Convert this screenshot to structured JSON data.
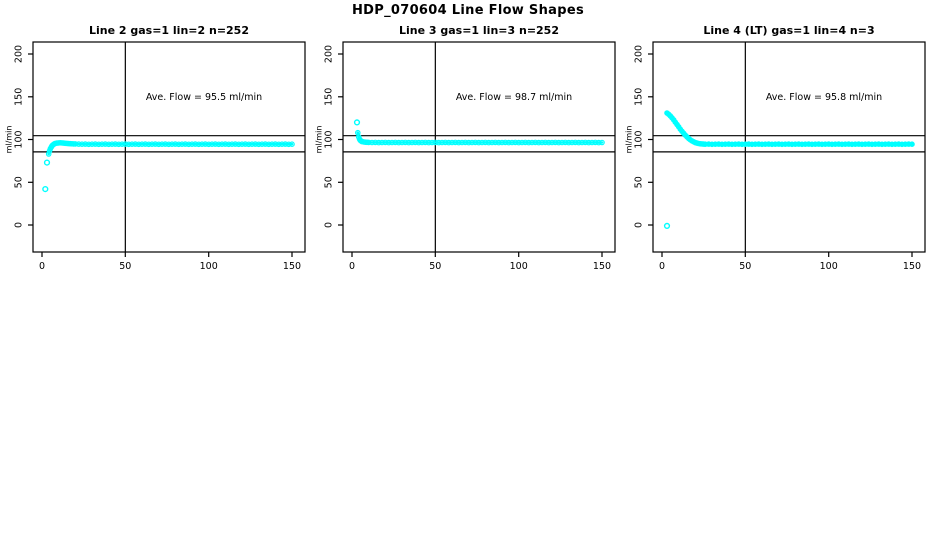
{
  "main_title": "HDP_070604  Line Flow Shapes",
  "colors": {
    "points": "#00ffff",
    "axis": "#000000",
    "background": "#ffffff"
  },
  "chart_data": [
    {
      "type": "scatter",
      "title": "Line 2 gas=1 lin=2 n=252",
      "annotation": "Ave. Flow =  95.5  ml/min",
      "ave_flow_ml_min": 95.5,
      "xlabel": "",
      "ylabel": "ml/min",
      "xlim": [
        -5,
        158
      ],
      "ylim": [
        -32,
        214
      ],
      "xticks": [
        0,
        50,
        100,
        150
      ],
      "yticks": [
        0,
        50,
        100,
        150,
        200
      ],
      "vline_x": 50,
      "hlines_y": [
        104.5,
        85.5
      ],
      "grid": false,
      "outliers": [
        [
          2,
          42
        ],
        [
          3,
          73
        ]
      ],
      "points": [
        [
          4,
          83
        ],
        [
          4.5,
          86.5
        ],
        [
          5,
          89
        ],
        [
          5.5,
          91
        ],
        [
          6,
          92.5
        ],
        [
          6.5,
          93.6
        ],
        [
          7,
          94.4
        ],
        [
          7.5,
          95
        ],
        [
          8,
          95.4
        ],
        [
          9,
          95.8
        ],
        [
          10,
          96
        ],
        [
          11,
          96.1
        ],
        [
          12,
          96
        ],
        [
          13,
          95.8
        ],
        [
          14,
          95.6
        ],
        [
          15,
          95.4
        ],
        [
          16,
          95.2
        ],
        [
          17,
          95.1
        ],
        [
          18,
          95
        ],
        [
          19,
          94.9
        ],
        [
          20,
          94.8
        ],
        [
          22,
          94.6
        ],
        [
          24,
          94.5
        ],
        [
          26,
          94.6
        ],
        [
          28,
          94.4
        ],
        [
          30,
          94.5
        ],
        [
          32,
          94.6
        ],
        [
          34,
          94.4
        ],
        [
          36,
          94.5
        ],
        [
          38,
          94.6
        ],
        [
          40,
          94.4
        ],
        [
          42,
          94.5
        ],
        [
          44,
          94.6
        ],
        [
          46,
          94.4
        ],
        [
          48,
          94.5
        ],
        [
          50,
          94.6
        ],
        [
          52,
          94.4
        ],
        [
          54,
          94.5
        ],
        [
          56,
          94.6
        ],
        [
          58,
          94.4
        ],
        [
          60,
          94.5
        ],
        [
          62,
          94.6
        ],
        [
          64,
          94.4
        ],
        [
          66,
          94.5
        ],
        [
          68,
          94.6
        ],
        [
          70,
          94.4
        ],
        [
          72,
          94.5
        ],
        [
          74,
          94.6
        ],
        [
          76,
          94.4
        ],
        [
          78,
          94.5
        ],
        [
          80,
          94.6
        ],
        [
          82,
          94.4
        ],
        [
          84,
          94.5
        ],
        [
          86,
          94.6
        ],
        [
          88,
          94.4
        ],
        [
          90,
          94.5
        ],
        [
          92,
          94.6
        ],
        [
          94,
          94.4
        ],
        [
          96,
          94.5
        ],
        [
          98,
          94.6
        ],
        [
          100,
          94.4
        ],
        [
          102,
          94.5
        ],
        [
          104,
          94.6
        ],
        [
          106,
          94.4
        ],
        [
          108,
          94.5
        ],
        [
          110,
          94.6
        ],
        [
          112,
          94.4
        ],
        [
          114,
          94.5
        ],
        [
          116,
          94.6
        ],
        [
          118,
          94.4
        ],
        [
          120,
          94.5
        ],
        [
          122,
          94.6
        ],
        [
          124,
          94.4
        ],
        [
          126,
          94.5
        ],
        [
          128,
          94.6
        ],
        [
          130,
          94.4
        ],
        [
          132,
          94.5
        ],
        [
          134,
          94.6
        ],
        [
          136,
          94.4
        ],
        [
          138,
          94.5
        ],
        [
          140,
          94.6
        ],
        [
          142,
          94.4
        ],
        [
          144,
          94.5
        ],
        [
          146,
          94.6
        ],
        [
          148,
          94.4
        ],
        [
          150,
          94.5
        ]
      ]
    },
    {
      "type": "scatter",
      "title": "Line 3 gas=1 lin=3 n=252",
      "annotation": "Ave. Flow =  98.7  ml/min",
      "ave_flow_ml_min": 98.7,
      "xlabel": "",
      "ylabel": "ml/min",
      "xlim": [
        -5,
        158
      ],
      "ylim": [
        -32,
        214
      ],
      "xticks": [
        0,
        50,
        100,
        150
      ],
      "yticks": [
        0,
        50,
        100,
        150,
        200
      ],
      "vline_x": 50,
      "hlines_y": [
        104.5,
        85.5
      ],
      "grid": false,
      "outliers": [
        [
          3,
          120
        ]
      ],
      "points": [
        [
          3.5,
          108
        ],
        [
          4,
          103
        ],
        [
          4.5,
          100.5
        ],
        [
          5,
          99
        ],
        [
          5.5,
          98.2
        ],
        [
          6,
          97.6
        ],
        [
          7,
          97.2
        ],
        [
          8,
          96.9
        ],
        [
          9,
          96.7
        ],
        [
          10,
          96.6
        ],
        [
          12,
          96.5
        ],
        [
          14,
          96.6
        ],
        [
          16,
          96.4
        ],
        [
          18,
          96.5
        ],
        [
          20,
          96.6
        ],
        [
          22,
          96.4
        ],
        [
          24,
          96.5
        ],
        [
          26,
          96.6
        ],
        [
          28,
          96.4
        ],
        [
          30,
          96.5
        ],
        [
          32,
          96.6
        ],
        [
          34,
          96.4
        ],
        [
          36,
          96.5
        ],
        [
          38,
          96.6
        ],
        [
          40,
          96.4
        ],
        [
          42,
          96.5
        ],
        [
          44,
          96.6
        ],
        [
          46,
          96.4
        ],
        [
          48,
          96.5
        ],
        [
          50,
          96.6
        ],
        [
          52,
          96.4
        ],
        [
          54,
          96.5
        ],
        [
          56,
          96.6
        ],
        [
          58,
          96.4
        ],
        [
          60,
          96.5
        ],
        [
          62,
          96.6
        ],
        [
          64,
          96.4
        ],
        [
          66,
          96.5
        ],
        [
          68,
          96.6
        ],
        [
          70,
          96.4
        ],
        [
          72,
          96.5
        ],
        [
          74,
          96.6
        ],
        [
          76,
          96.4
        ],
        [
          78,
          96.5
        ],
        [
          80,
          96.6
        ],
        [
          82,
          96.4
        ],
        [
          84,
          96.5
        ],
        [
          86,
          96.6
        ],
        [
          88,
          96.4
        ],
        [
          90,
          96.5
        ],
        [
          92,
          96.6
        ],
        [
          94,
          96.4
        ],
        [
          96,
          96.5
        ],
        [
          98,
          96.6
        ],
        [
          100,
          96.4
        ],
        [
          102,
          96.5
        ],
        [
          104,
          96.6
        ],
        [
          106,
          96.4
        ],
        [
          108,
          96.5
        ],
        [
          110,
          96.6
        ],
        [
          112,
          96.4
        ],
        [
          114,
          96.5
        ],
        [
          116,
          96.6
        ],
        [
          118,
          96.4
        ],
        [
          120,
          96.5
        ],
        [
          122,
          96.6
        ],
        [
          124,
          96.4
        ],
        [
          126,
          96.5
        ],
        [
          128,
          96.6
        ],
        [
          130,
          96.4
        ],
        [
          132,
          96.5
        ],
        [
          134,
          96.6
        ],
        [
          136,
          96.4
        ],
        [
          138,
          96.5
        ],
        [
          140,
          96.6
        ],
        [
          142,
          96.4
        ],
        [
          144,
          96.5
        ],
        [
          146,
          96.6
        ],
        [
          148,
          96.4
        ],
        [
          150,
          96.5
        ]
      ]
    },
    {
      "type": "scatter",
      "title": "Line 4 (LT) gas=1 lin=4 n=3",
      "annotation": "Ave. Flow =  95.8  ml/min",
      "ave_flow_ml_min": 95.8,
      "xlabel": "",
      "ylabel": "ml/min",
      "xlim": [
        -5,
        158
      ],
      "ylim": [
        -32,
        214
      ],
      "xticks": [
        0,
        50,
        100,
        150
      ],
      "yticks": [
        0,
        50,
        100,
        150,
        200
      ],
      "vline_x": 50,
      "hlines_y": [
        104.5,
        85.5
      ],
      "grid": false,
      "outliers": [
        [
          3,
          -1
        ]
      ],
      "points": [
        [
          3,
          131
        ],
        [
          4,
          129.5
        ],
        [
          5,
          127.6
        ],
        [
          6,
          125.4
        ],
        [
          7,
          122.9
        ],
        [
          8,
          120.2
        ],
        [
          9,
          117.5
        ],
        [
          10,
          114.8
        ],
        [
          11,
          112.1
        ],
        [
          12,
          109.6
        ],
        [
          13,
          107.2
        ],
        [
          14,
          105
        ],
        [
          15,
          103
        ],
        [
          16,
          101.2
        ],
        [
          17,
          99.7
        ],
        [
          18,
          98.4
        ],
        [
          19,
          97.3
        ],
        [
          20,
          96.4
        ],
        [
          21,
          95.8
        ],
        [
          22,
          95.3
        ],
        [
          23,
          95
        ],
        [
          24,
          94.8
        ],
        [
          25,
          94.6
        ],
        [
          26,
          94.5
        ],
        [
          28,
          94.6
        ],
        [
          30,
          94.4
        ],
        [
          32,
          94.5
        ],
        [
          34,
          94.6
        ],
        [
          36,
          94.4
        ],
        [
          38,
          94.5
        ],
        [
          40,
          94.6
        ],
        [
          42,
          94.4
        ],
        [
          44,
          94.5
        ],
        [
          46,
          94.6
        ],
        [
          48,
          94.4
        ],
        [
          50,
          94.5
        ],
        [
          52,
          94.6
        ],
        [
          54,
          94.4
        ],
        [
          56,
          94.5
        ],
        [
          58,
          94.6
        ],
        [
          60,
          94.4
        ],
        [
          62,
          94.5
        ],
        [
          64,
          94.6
        ],
        [
          66,
          94.4
        ],
        [
          68,
          94.5
        ],
        [
          70,
          94.6
        ],
        [
          72,
          94.4
        ],
        [
          74,
          94.5
        ],
        [
          76,
          94.6
        ],
        [
          78,
          94.4
        ],
        [
          80,
          94.5
        ],
        [
          82,
          94.6
        ],
        [
          84,
          94.4
        ],
        [
          86,
          94.5
        ],
        [
          88,
          94.6
        ],
        [
          90,
          94.4
        ],
        [
          92,
          94.5
        ],
        [
          94,
          94.6
        ],
        [
          96,
          94.4
        ],
        [
          98,
          94.5
        ],
        [
          100,
          94.6
        ],
        [
          102,
          94.4
        ],
        [
          104,
          94.5
        ],
        [
          106,
          94.6
        ],
        [
          108,
          94.4
        ],
        [
          110,
          94.5
        ],
        [
          112,
          94.6
        ],
        [
          114,
          94.4
        ],
        [
          116,
          94.5
        ],
        [
          118,
          94.6
        ],
        [
          120,
          94.4
        ],
        [
          122,
          94.5
        ],
        [
          124,
          94.6
        ],
        [
          126,
          94.4
        ],
        [
          128,
          94.5
        ],
        [
          130,
          94.6
        ],
        [
          132,
          94.4
        ],
        [
          134,
          94.5
        ],
        [
          136,
          94.6
        ],
        [
          138,
          94.4
        ],
        [
          140,
          94.5
        ],
        [
          142,
          94.6
        ],
        [
          144,
          94.4
        ],
        [
          146,
          94.5
        ],
        [
          148,
          94.6
        ],
        [
          150,
          94.5
        ]
      ]
    }
  ]
}
